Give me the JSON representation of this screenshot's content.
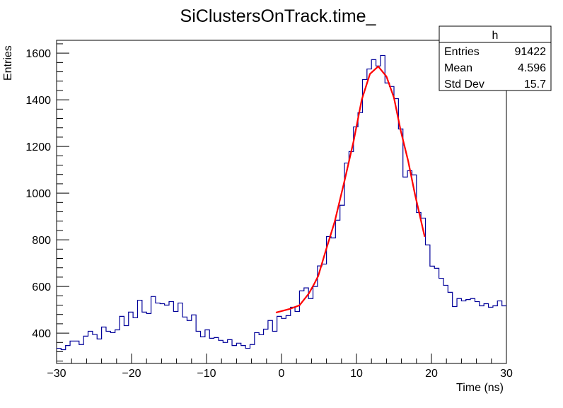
{
  "chart_data": {
    "type": "histogram",
    "title": "SiClustersOnTrack.time_",
    "xlabel": "Time (ns)",
    "ylabel": "Entries",
    "xlim": [
      -30,
      30
    ],
    "ylim": [
      270,
      1655
    ],
    "x_ticks": [
      -30,
      -20,
      -10,
      0,
      10,
      20,
      30
    ],
    "y_ticks": [
      400,
      600,
      800,
      1000,
      1200,
      1400,
      1600
    ],
    "grid": false,
    "histogram_color": "#000099",
    "fit_color": "#ff0000",
    "bins": 100,
    "bin_contents": [
      335,
      329,
      347,
      366,
      366,
      351,
      387,
      408,
      394,
      375,
      426,
      408,
      402,
      414,
      472,
      432,
      490,
      466,
      541,
      490,
      484,
      557,
      529,
      526,
      520,
      535,
      493,
      529,
      469,
      454,
      478,
      408,
      384,
      414,
      378,
      381,
      369,
      360,
      372,
      347,
      357,
      347,
      335,
      351,
      402,
      393,
      417,
      454,
      408,
      472,
      463,
      475,
      511,
      493,
      581,
      594,
      548,
      600,
      688,
      696,
      814,
      808,
      884,
      948,
      1129,
      1178,
      1284,
      1345,
      1487,
      1532,
      1572,
      1545,
      1590,
      1472,
      1457,
      1405,
      1275,
      1069,
      1096,
      1078,
      917,
      893,
      778,
      687,
      678,
      635,
      605,
      575,
      514,
      548,
      538,
      544,
      548,
      535,
      517,
      526,
      511,
      517,
      538,
      517
    ],
    "fit_curve": [
      [
        -0.75,
        488
      ],
      [
        1.13,
        504
      ],
      [
        2.4,
        519
      ],
      [
        3.65,
        570
      ],
      [
        4.43,
        615
      ],
      [
        4.9,
        645
      ],
      [
        5.94,
        757
      ],
      [
        7.1,
        878
      ],
      [
        8.37,
        1048
      ],
      [
        9.6,
        1220
      ],
      [
        10.7,
        1400
      ],
      [
        11.8,
        1511
      ],
      [
        12.9,
        1543
      ],
      [
        14.0,
        1500
      ],
      [
        15.0,
        1409
      ],
      [
        15.9,
        1268
      ],
      [
        16.9,
        1137
      ],
      [
        17.8,
        995
      ],
      [
        19.1,
        813
      ]
    ],
    "stats_box": {
      "name": "h",
      "rows": [
        {
          "label": "Entries",
          "value": "91422"
        },
        {
          "label": "Mean",
          "value": "4.596"
        },
        {
          "label": "Std Dev",
          "value": "15.7"
        }
      ]
    }
  }
}
